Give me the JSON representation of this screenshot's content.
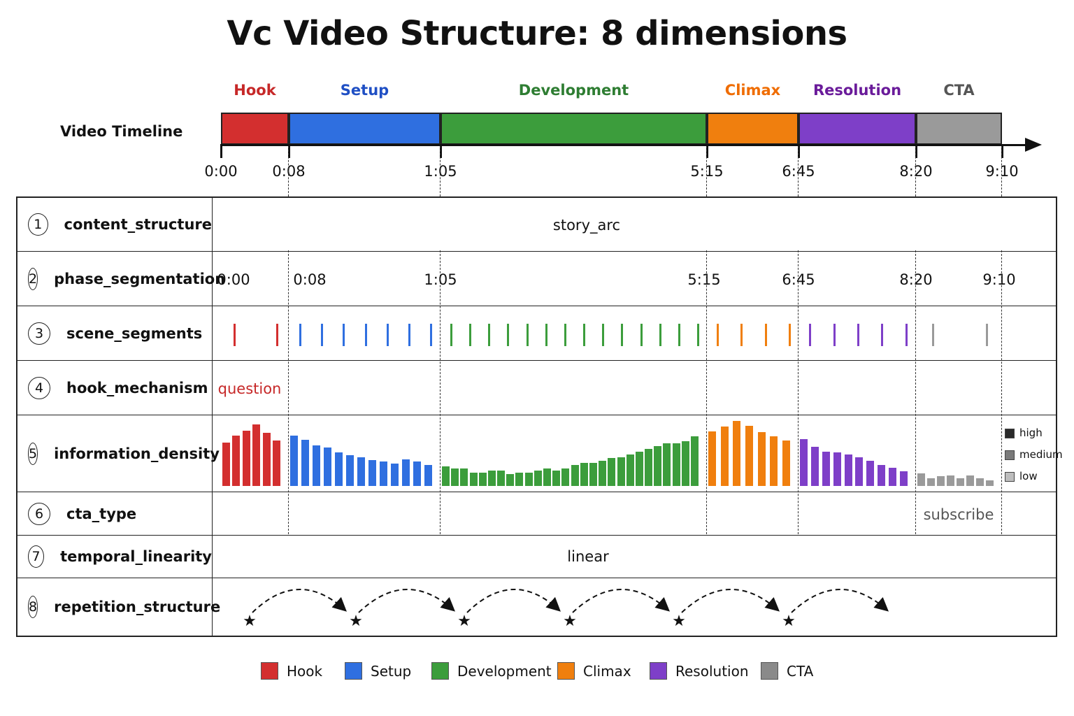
{
  "title": "Vc Video Structure: 8 dimensions",
  "timeline": {
    "row_label": "Video Timeline",
    "phases": [
      {
        "name": "Hook",
        "start": "0:00",
        "end": "0:08",
        "color": "#d32f2f"
      },
      {
        "name": "Setup",
        "start": "0:08",
        "end": "1:05",
        "color": "#2f6fe0"
      },
      {
        "name": "Development",
        "start": "1:05",
        "end": "5:15",
        "color": "#3c9d3c"
      },
      {
        "name": "Climax",
        "start": "5:15",
        "end": "6:45",
        "color": "#f07f0e"
      },
      {
        "name": "Resolution",
        "start": "6:45",
        "end": "8:20",
        "color": "#7e3fc8"
      },
      {
        "name": "CTA",
        "start": "8:20",
        "end": "9:10",
        "color": "#9a9a9a"
      }
    ],
    "phase_label_colors": [
      "#c62828",
      "#1f4fc4",
      "#2e7d32",
      "#ef6c00",
      "#6a1b9a",
      "#555555"
    ],
    "ticks": [
      "0:00",
      "0:08",
      "1:05",
      "5:15",
      "6:45",
      "8:20",
      "9:10"
    ]
  },
  "dimensions": [
    {
      "num": "1",
      "name": "content_structure",
      "value": "story_arc"
    },
    {
      "num": "2",
      "name": "phase_segmentation",
      "values": [
        "0:00",
        "0:08",
        "1:05",
        "5:15",
        "6:45",
        "8:20",
        "9:10"
      ]
    },
    {
      "num": "3",
      "name": "scene_segments",
      "counts_per_phase": [
        2,
        7,
        14,
        4,
        5,
        2
      ]
    },
    {
      "num": "4",
      "name": "hook_mechanism",
      "value": "question",
      "color": "#c62828"
    },
    {
      "num": "5",
      "name": "information_density",
      "legend": [
        "high",
        "medium",
        "low"
      ],
      "legend_colors": [
        "#2a2a2a",
        "#7a7a7a",
        "#bdbdbd"
      ],
      "levels": {
        "Hook": [
          0.71,
          0.82,
          0.9,
          1.0,
          0.86,
          0.74
        ],
        "Setup": [
          0.82,
          0.75,
          0.66,
          0.62,
          0.55,
          0.5,
          0.47,
          0.42,
          0.4,
          0.36,
          0.43,
          0.4,
          0.34
        ],
        "Development": [
          0.32,
          0.28,
          0.28,
          0.22,
          0.22,
          0.25,
          0.25,
          0.19,
          0.22,
          0.22,
          0.25,
          0.28,
          0.25,
          0.28,
          0.34,
          0.38,
          0.38,
          0.41,
          0.45,
          0.47,
          0.51,
          0.56,
          0.6,
          0.65,
          0.69,
          0.69,
          0.73,
          0.81
        ],
        "Climax": [
          0.89,
          0.97,
          1.06,
          0.98,
          0.88,
          0.81,
          0.74
        ],
        "Resolution": [
          0.76,
          0.64,
          0.56,
          0.54,
          0.51,
          0.47,
          0.41,
          0.34,
          0.3,
          0.24
        ],
        "CTA": [
          0.2,
          0.13,
          0.16,
          0.17,
          0.12,
          0.17,
          0.12,
          0.09
        ]
      }
    },
    {
      "num": "6",
      "name": "cta_type",
      "value": "subscribe"
    },
    {
      "num": "7",
      "name": "temporal_linearity",
      "value": "linear"
    },
    {
      "num": "8",
      "name": "repetition_structure",
      "star_count": 6
    }
  ],
  "legend": [
    {
      "label": "Hook",
      "color": "#d32f2f"
    },
    {
      "label": "Setup",
      "color": "#2f6fe0"
    },
    {
      "label": "Development",
      "color": "#3c9d3c"
    },
    {
      "label": "Climax",
      "color": "#f07f0e"
    },
    {
      "label": "Resolution",
      "color": "#7e3fc8"
    },
    {
      "label": "CTA",
      "color": "#8a8a8a"
    }
  ]
}
